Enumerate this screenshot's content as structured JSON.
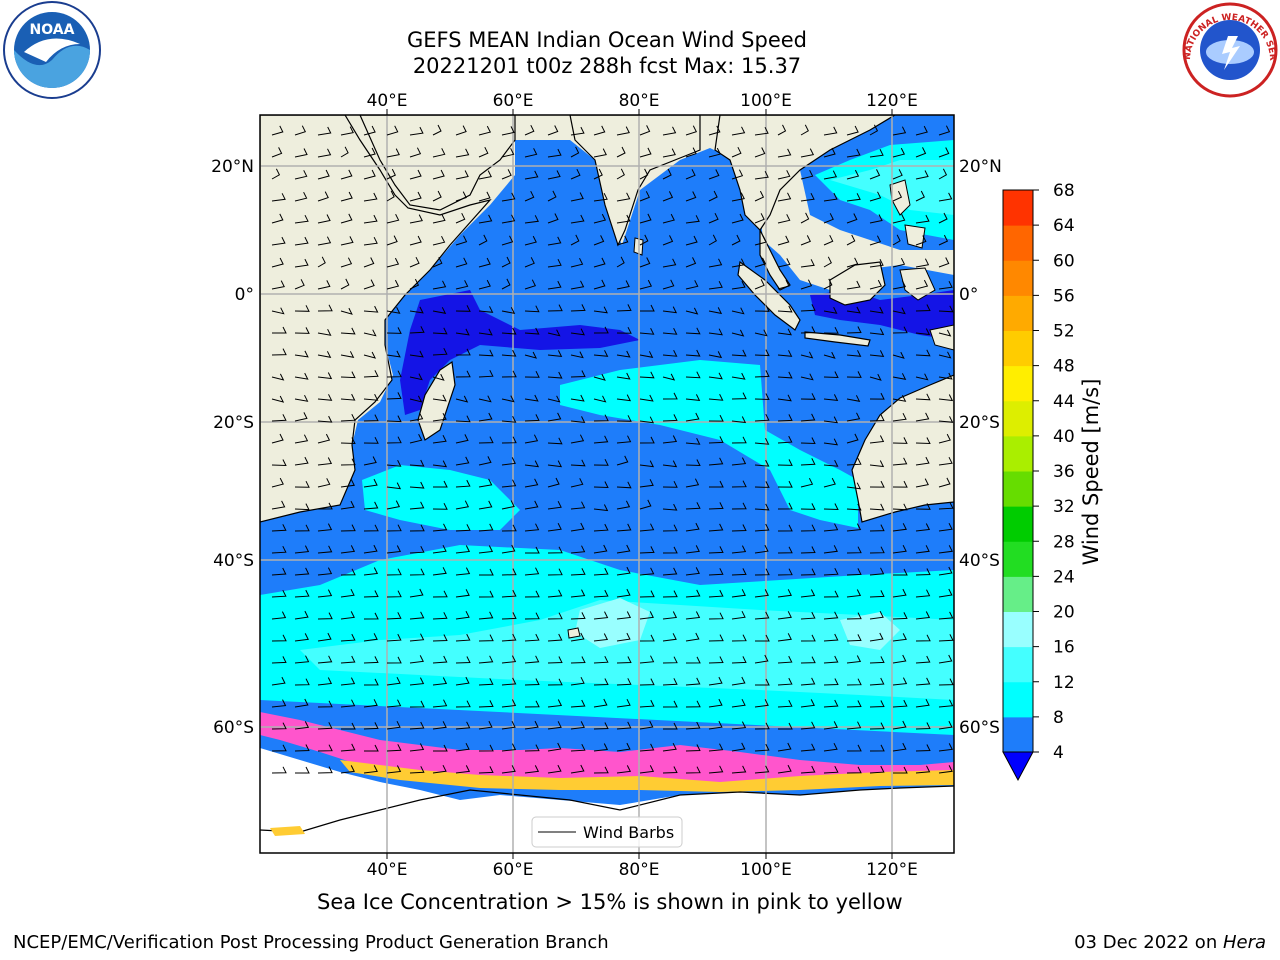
{
  "title": {
    "line1": "GEFS MEAN Indian Ocean Wind Speed",
    "line2": "20221201 t00z 288h fcst   Max: 15.37"
  },
  "logos": {
    "noaa_text": "NOAA",
    "nws_text": "NATIONAL WEATHER SERVICE"
  },
  "map": {
    "lon_ticks_top": [
      "40°E",
      "60°E",
      "80°E",
      "100°E",
      "120°E"
    ],
    "lon_ticks_bottom": [
      "40°E",
      "60°E",
      "80°E",
      "100°E",
      "120°E"
    ],
    "lat_ticks_left": [
      "20°N",
      "0°",
      "20°S",
      "40°S",
      "60°S"
    ],
    "lat_ticks_right": [
      "20°N",
      "0°",
      "20°S",
      "40°S",
      "60°S"
    ],
    "legend_label": "Wind Barbs",
    "colors": {
      "land": "#eeeedd",
      "ws_4_8": "#1e7dfa",
      "ws_8_12": "#00ffff",
      "ws_12_16": "#44ffff",
      "ws_16_20": "#99ffff",
      "ws_lt4": "#1414e6",
      "ice": "#ff55cc"
    }
  },
  "colorbar": {
    "label": "Wind Speed [m/s]",
    "ticks": [
      "4",
      "8",
      "12",
      "16",
      "20",
      "24",
      "28",
      "32",
      "36",
      "40",
      "44",
      "48",
      "52",
      "56",
      "60",
      "64",
      "68"
    ],
    "colors": [
      "#1e7dfa",
      "#00ffff",
      "#44ffff",
      "#99ffff",
      "#66ee88",
      "#22dd22",
      "#00cc00",
      "#66dd00",
      "#aaee00",
      "#ddee00",
      "#ffee00",
      "#ffcc00",
      "#ffaa00",
      "#ff8800",
      "#ff6600",
      "#ff3300",
      "#ff0000"
    ],
    "under_color": "#0000ff"
  },
  "caption": "Sea Ice Concentration > 15% is shown in pink to yellow",
  "footer": {
    "left": "NCEP/EMC/Verification Post Processing Product Generation Branch",
    "right_date": "03 Dec 2022 on ",
    "right_machine": "Hera"
  }
}
